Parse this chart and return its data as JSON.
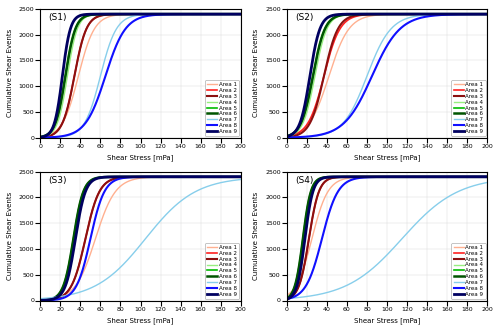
{
  "subplots": [
    "S1",
    "S2",
    "S3",
    "S4"
  ],
  "areas": [
    "Area 1",
    "Area 2",
    "Area 3",
    "Area 4",
    "Area 5",
    "Area 6",
    "Area 7",
    "Area 8",
    "Area 9"
  ],
  "colors": [
    "#FFB090",
    "#FF2020",
    "#8B1010",
    "#98EE80",
    "#00BB00",
    "#005500",
    "#87CEEB",
    "#1010FF",
    "#000060"
  ],
  "linewidths": [
    1.0,
    1.2,
    1.5,
    1.0,
    1.2,
    1.8,
    1.0,
    1.5,
    2.0
  ],
  "y_max": 2400,
  "xlabel": "Shear Stress [mPa]",
  "ylabel": "Cumulative Shear Events",
  "xlim": [
    0,
    200
  ],
  "ylim": [
    0,
    2500
  ],
  "S1": {
    "midpoints": [
      38,
      34,
      34,
      27,
      25,
      25,
      60,
      65,
      22
    ],
    "widths": [
      8,
      6,
      6,
      5,
      5,
      5,
      8,
      10,
      4
    ]
  },
  "S2": {
    "midpoints": [
      42,
      37,
      37,
      28,
      26,
      26,
      80,
      85,
      23
    ],
    "widths": [
      10,
      8,
      7,
      6,
      6,
      6,
      12,
      14,
      5
    ]
  },
  "S3": {
    "midpoints": [
      55,
      45,
      45,
      35,
      33,
      33,
      105,
      50,
      35
    ],
    "widths": [
      10,
      7,
      7,
      5,
      5,
      5,
      25,
      7,
      5
    ]
  },
  "S4": {
    "midpoints": [
      25,
      22,
      22,
      18,
      16,
      16,
      115,
      35,
      18
    ],
    "widths": [
      8,
      5,
      5,
      4,
      4,
      4,
      28,
      8,
      4
    ]
  }
}
